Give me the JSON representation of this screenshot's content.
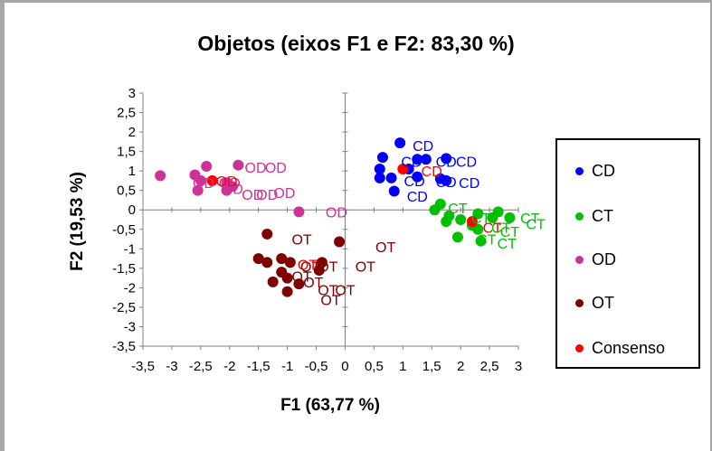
{
  "chart_data": {
    "type": "scatter",
    "title": "Objetos (eixos F1 e F2: 83,30 %)",
    "xlabel": "F1 (63,77 %)",
    "ylabel": "F2 (19,53 %)",
    "xlim": [
      -3.5,
      3
    ],
    "ylim": [
      -3.5,
      3
    ],
    "x_ticks": [
      "-3,5",
      "-3",
      "-2,5",
      "-2",
      "-1,5",
      "-1",
      "-0,5",
      "0",
      "0,5",
      "1",
      "1,5",
      "2",
      "2,5",
      "3"
    ],
    "y_ticks": [
      "3",
      "2,5",
      "2",
      "1,5",
      "1",
      "0,5",
      "0",
      "-0,5",
      "-1",
      "-1,5",
      "-2",
      "-2,5",
      "-3",
      "-3,5"
    ],
    "grid": false,
    "legend_position": "right",
    "series": [
      {
        "name": "CD",
        "color": "#0000ff",
        "points": [
          [
            0.95,
            1.72
          ],
          [
            0.65,
            1.35
          ],
          [
            1.25,
            1.3
          ],
          [
            1.4,
            1.3
          ],
          [
            1.75,
            1.32
          ],
          [
            0.6,
            1.05
          ],
          [
            1.1,
            1.05
          ],
          [
            0.6,
            0.82
          ],
          [
            0.8,
            0.82
          ],
          [
            1.25,
            0.85
          ],
          [
            1.65,
            0.8
          ],
          [
            1.75,
            0.75
          ],
          [
            0.85,
            0.48
          ]
        ],
        "labels": [
          [
            1.35,
            1.65,
            "CD"
          ],
          [
            1.15,
            1.25,
            "CD"
          ],
          [
            1.2,
            0.75,
            "CD"
          ],
          [
            1.75,
            1.25,
            "CD"
          ],
          [
            2.1,
            1.25,
            "CD"
          ],
          [
            1.75,
            0.72,
            "CD"
          ],
          [
            2.15,
            0.7,
            "CD"
          ],
          [
            1.25,
            0.35,
            "CD"
          ]
        ]
      },
      {
        "name": "CT",
        "color": "#00c000",
        "points": [
          [
            1.65,
            0.15
          ],
          [
            1.55,
            0.0
          ],
          [
            1.8,
            -0.15
          ],
          [
            1.75,
            -0.3
          ],
          [
            2.0,
            -0.25
          ],
          [
            2.3,
            -0.1
          ],
          [
            2.55,
            -0.2
          ],
          [
            2.2,
            -0.4
          ],
          [
            2.3,
            -0.5
          ],
          [
            2.65,
            -0.05
          ],
          [
            2.85,
            -0.2
          ],
          [
            1.95,
            -0.7
          ],
          [
            2.35,
            -0.8
          ]
        ],
        "labels": [
          [
            1.95,
            0.05,
            "CT"
          ],
          [
            2.35,
            -0.2,
            "CT"
          ],
          [
            2.7,
            -0.45,
            "CT"
          ],
          [
            3.2,
            -0.2,
            "CT"
          ],
          [
            3.3,
            -0.35,
            "CT"
          ],
          [
            2.85,
            -0.55,
            "CT"
          ],
          [
            2.45,
            -0.75,
            "CT"
          ],
          [
            2.8,
            -0.85,
            "CT"
          ]
        ]
      },
      {
        "name": "OD",
        "color": "#cc3399",
        "points": [
          [
            -3.2,
            0.88
          ],
          [
            -2.6,
            0.9
          ],
          [
            -2.4,
            1.12
          ],
          [
            -1.85,
            1.15
          ],
          [
            -2.5,
            0.75
          ],
          [
            -2.55,
            0.5
          ],
          [
            -2.05,
            0.7
          ],
          [
            -2.05,
            0.5
          ],
          [
            -1.95,
            0.6
          ],
          [
            -0.8,
            -0.05
          ]
        ],
        "labels": [
          [
            -2.45,
            0.7,
            "OD"
          ],
          [
            -2.0,
            0.7,
            "OD"
          ],
          [
            -1.95,
            0.55,
            "OD"
          ],
          [
            -1.55,
            1.1,
            "OD"
          ],
          [
            -1.2,
            1.1,
            "OD"
          ],
          [
            -1.6,
            0.4,
            "OD"
          ],
          [
            -1.35,
            0.4,
            "OD"
          ],
          [
            -1.05,
            0.45,
            "OD"
          ],
          [
            -0.15,
            -0.05,
            "OD"
          ]
        ]
      },
      {
        "name": "OT",
        "color": "#7f0000",
        "points": [
          [
            -1.35,
            -0.62
          ],
          [
            -1.5,
            -1.25
          ],
          [
            -1.35,
            -1.35
          ],
          [
            -1.1,
            -1.25
          ],
          [
            -0.95,
            -1.35
          ],
          [
            -1.1,
            -1.6
          ],
          [
            -1.0,
            -1.75
          ],
          [
            -1.25,
            -1.85
          ],
          [
            -1.0,
            -2.1
          ],
          [
            -0.8,
            -1.9
          ],
          [
            -0.4,
            -1.35
          ],
          [
            -0.45,
            -1.55
          ],
          [
            -0.1,
            -0.82
          ]
        ],
        "labels": [
          [
            -0.75,
            -0.75,
            "OT"
          ],
          [
            0.7,
            -0.95,
            "OT"
          ],
          [
            -0.6,
            -1.45,
            "OT"
          ],
          [
            -0.3,
            -1.45,
            "OT"
          ],
          [
            -0.75,
            -1.7,
            "OT"
          ],
          [
            -0.55,
            -1.85,
            "OT"
          ],
          [
            -0.3,
            -2.05,
            "OT"
          ],
          [
            0.0,
            -2.05,
            "OT"
          ],
          [
            -0.25,
            -2.3,
            "OT"
          ],
          [
            0.35,
            -1.45,
            "OT"
          ]
        ]
      },
      {
        "name": "Consenso",
        "color": "#ff0000",
        "points": [
          [
            -2.3,
            0.75
          ],
          [
            1.0,
            1.05
          ],
          [
            2.2,
            -0.3
          ]
        ],
        "labels": [
          [
            -2.05,
            0.75,
            "OD"
          ],
          [
            1.5,
            1.0,
            "CD"
          ],
          [
            2.55,
            -0.45,
            "CT"
          ],
          [
            -0.65,
            -1.4,
            "OT"
          ]
        ]
      }
    ]
  }
}
